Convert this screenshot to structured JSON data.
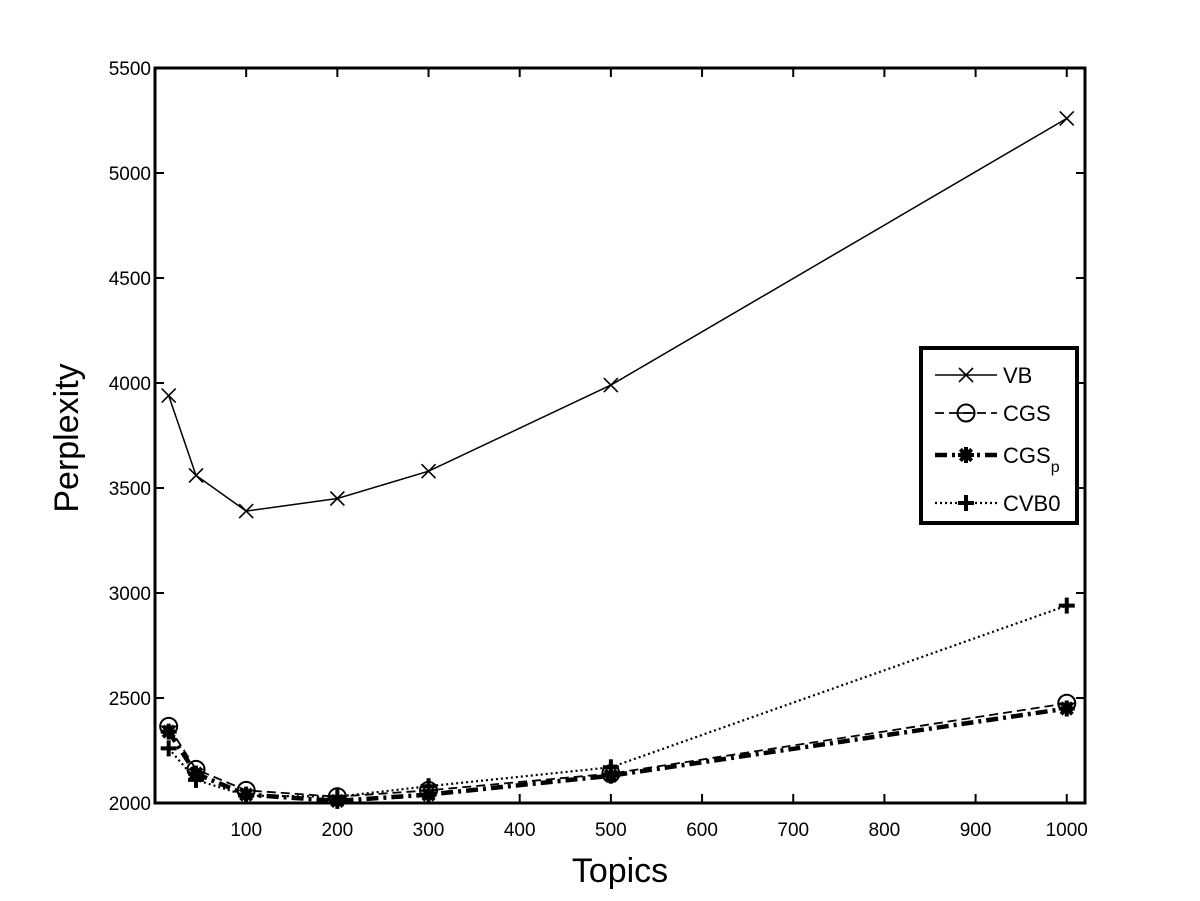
{
  "chart_data": {
    "type": "line",
    "xlabel": "Topics",
    "ylabel": "Perplexity",
    "xlim": [
      0,
      1020
    ],
    "ylim": [
      2000,
      5500
    ],
    "xticks": [
      100,
      200,
      300,
      400,
      500,
      600,
      700,
      800,
      900,
      1000
    ],
    "yticks": [
      2000,
      2500,
      3000,
      3500,
      4000,
      4500,
      5000,
      5500
    ],
    "x": [
      15,
      45,
      100,
      200,
      300,
      500,
      1000
    ],
    "legend_position": "right",
    "series": [
      {
        "name": "VB",
        "values": [
          3940,
          3560,
          3390,
          3450,
          3580,
          3990,
          5260
        ],
        "marker": "x",
        "line_style": "solid",
        "color": "#000000"
      },
      {
        "name": "CGS",
        "values": [
          2365,
          2160,
          2060,
          2030,
          2060,
          2140,
          2475
        ],
        "marker": "circle",
        "line_style": "dashed",
        "color": "#000000"
      },
      {
        "name": "CGS_p",
        "label_base": "CGS",
        "label_sub": "p",
        "values": [
          2340,
          2140,
          2040,
          2010,
          2040,
          2130,
          2450
        ],
        "marker": "asterisk",
        "line_style": "dashdot",
        "color": "#000000"
      },
      {
        "name": "CVB0",
        "values": [
          2260,
          2110,
          2035,
          2030,
          2080,
          2170,
          2940
        ],
        "marker": "plus",
        "line_style": "dotted",
        "color": "#000000"
      }
    ]
  }
}
